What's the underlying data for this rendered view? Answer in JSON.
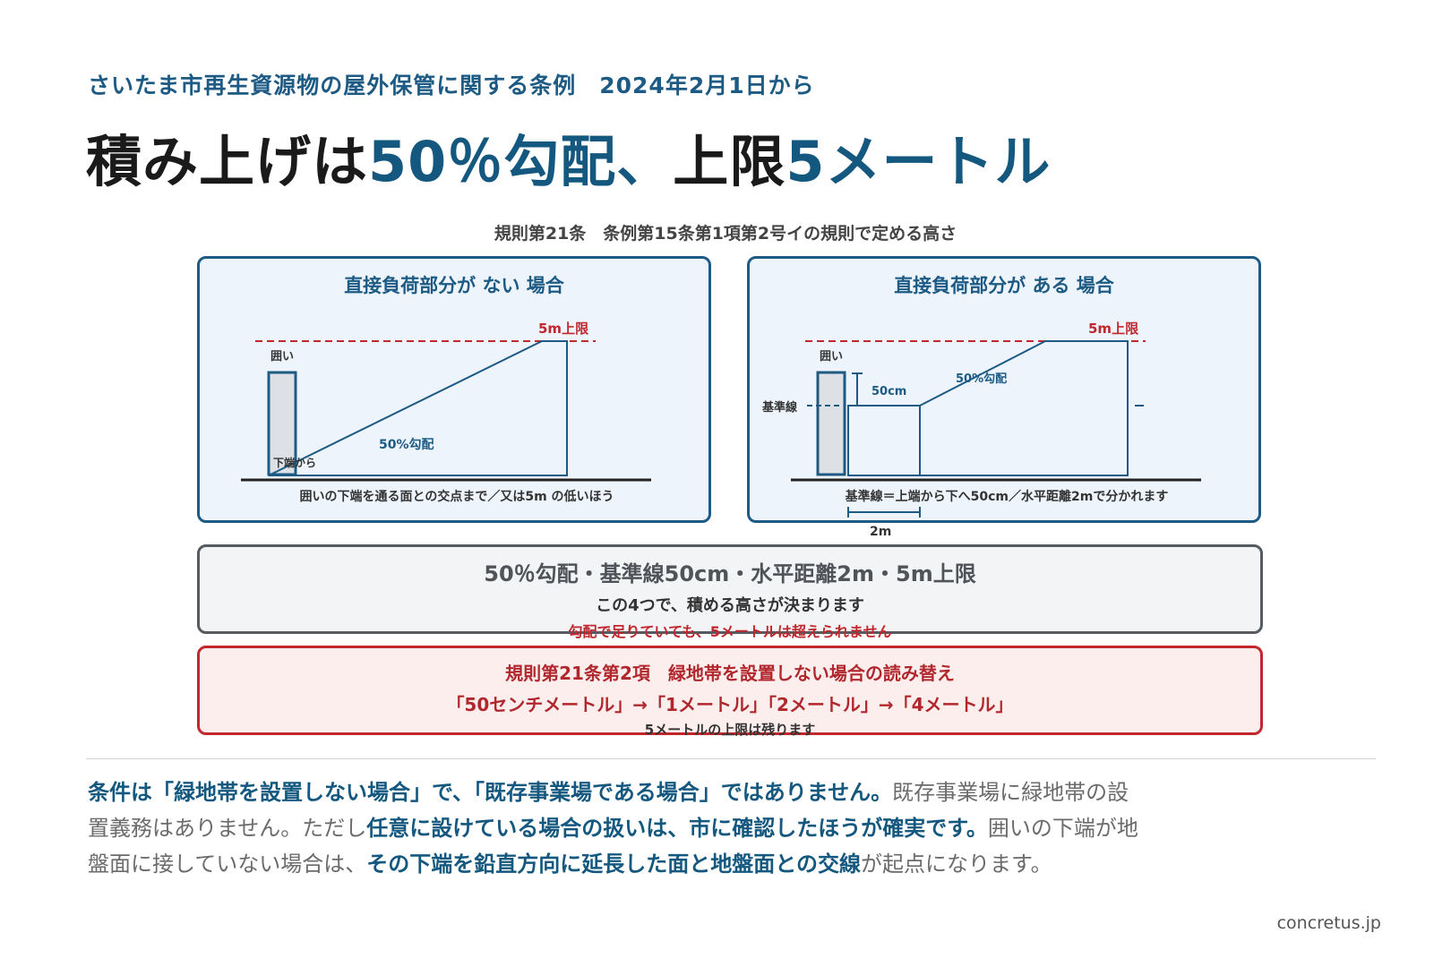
{
  "header": {
    "subtitle": "さいたま市再生資源物の屋外保管に関する条例　2024年2月1日から",
    "headline_a": "積み上げは",
    "headline_b": "50％勾配、",
    "headline_c": "上限",
    "headline_d": "5メートル"
  },
  "rule_caption": "規則第21条　条例第15条第1項第2号イの規則で定める高さ",
  "panel_left": {
    "title": "直接負荷部分が ない 場合",
    "limit_label": "5m上限",
    "fence_label": "囲い",
    "slope_label": "50%勾配",
    "bottom_label": "下端から",
    "caption": "囲いの下端を通る面との交点まで／又は5m の低いほう"
  },
  "panel_right": {
    "title": "直接負荷部分が ある 場合",
    "limit_label": "5m上限",
    "fence_label": "囲い",
    "baseline_label": "基準線",
    "offset_label": "50cm",
    "slope_label": "50%勾配",
    "distance_label": "2m",
    "caption": "基準線＝上端から下へ50cm／水平距離2mで分かれます"
  },
  "summary": {
    "main": "50％勾配・基準線50cm・水平距離2m・5m上限",
    "sub": "この4つで、積める高さが決まります",
    "warning": "勾配で足りていても、5メートルは超えられません"
  },
  "alert": {
    "title": "規則第21条第2項　緑地帯を設置しない場合の読み替え",
    "sub": "「50センチメートル」→「1メートル」「2メートル」→「4メートル」",
    "note": "5メートルの上限は残ります"
  },
  "note": {
    "s1": "条件は「緑地帯を設置しない場合」で、「既存事業場である場合」ではありません。",
    "s2": "既存事業場に緑地帯の設置義務はありません。ただし",
    "s3": "任意に設けている場合の扱いは、市に確認したほうが確実です。",
    "s4": "囲いの下端が地盤面に接していない場合は、",
    "s5": "その下端を鉛直方向に延長した面と地盤面との交線",
    "s6": "が起点になります。"
  },
  "footer": "concretus.jp",
  "colors": {
    "accent_blue": "#15587f",
    "warning_red": "#c0282d",
    "panel_bg": "#edf4fc"
  }
}
